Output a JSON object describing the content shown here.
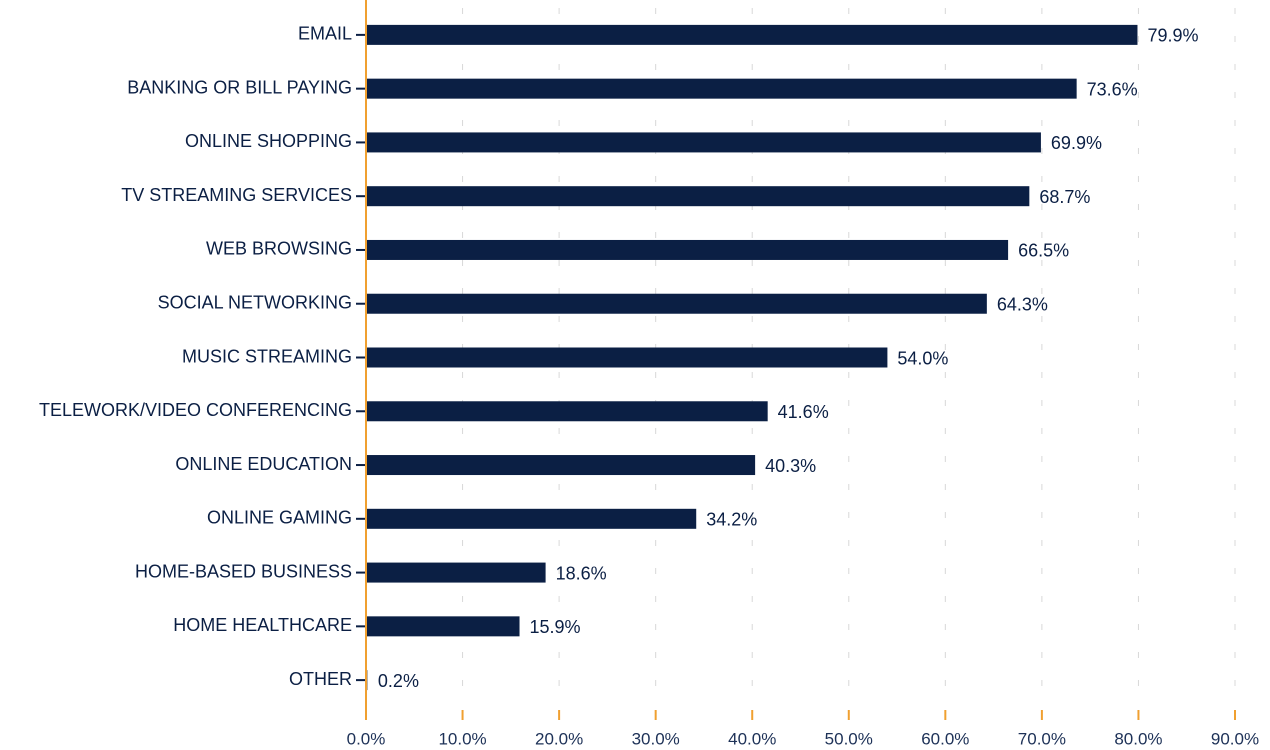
{
  "chart_data": {
    "type": "barh",
    "categories": [
      "EMAIL",
      "BANKING OR BILL PAYING",
      "ONLINE SHOPPING",
      "TV STREAMING SERVICES",
      "WEB BROWSING",
      "SOCIAL NETWORKING",
      "MUSIC STREAMING",
      "TELEWORK/VIDEO CONFERENCING",
      "ONLINE EDUCATION",
      "ONLINE GAMING",
      "HOME-BASED BUSINESS",
      "HOME HEALTHCARE",
      "OTHER"
    ],
    "values": [
      79.9,
      73.6,
      69.9,
      68.7,
      66.5,
      64.3,
      54.0,
      41.6,
      40.3,
      34.2,
      18.6,
      15.9,
      0.2
    ],
    "value_labels": [
      "79.9%",
      "73.6%",
      "69.9%",
      "68.7%",
      "66.5%",
      "64.3%",
      "54.0%",
      "41.6%",
      "40.3%",
      "34.2%",
      "18.6%",
      "15.9%",
      "0.2%"
    ],
    "colors": [
      "#0b1f44",
      "#0b1f44",
      "#0b1f44",
      "#0b1f44",
      "#0b1f44",
      "#0b1f44",
      "#0b1f44",
      "#0b1f44",
      "#0b1f44",
      "#0b1f44",
      "#0b1f44",
      "#0b1f44",
      "#b0b0b0"
    ],
    "xlim": [
      0,
      90
    ],
    "xticks": [
      {
        "value": 0,
        "label": "0.0%"
      },
      {
        "value": 10,
        "label": "10.0%"
      },
      {
        "value": 20,
        "label": "20.0%"
      },
      {
        "value": 30,
        "label": "30.0%"
      },
      {
        "value": 40,
        "label": "40.0%"
      },
      {
        "value": 50,
        "label": "50.0%"
      },
      {
        "value": 60,
        "label": "60.0%"
      },
      {
        "value": 70,
        "label": "70.0%"
      },
      {
        "value": 80,
        "label": "80.0%"
      },
      {
        "value": 90,
        "label": "90.0%"
      }
    ],
    "grid": true
  }
}
